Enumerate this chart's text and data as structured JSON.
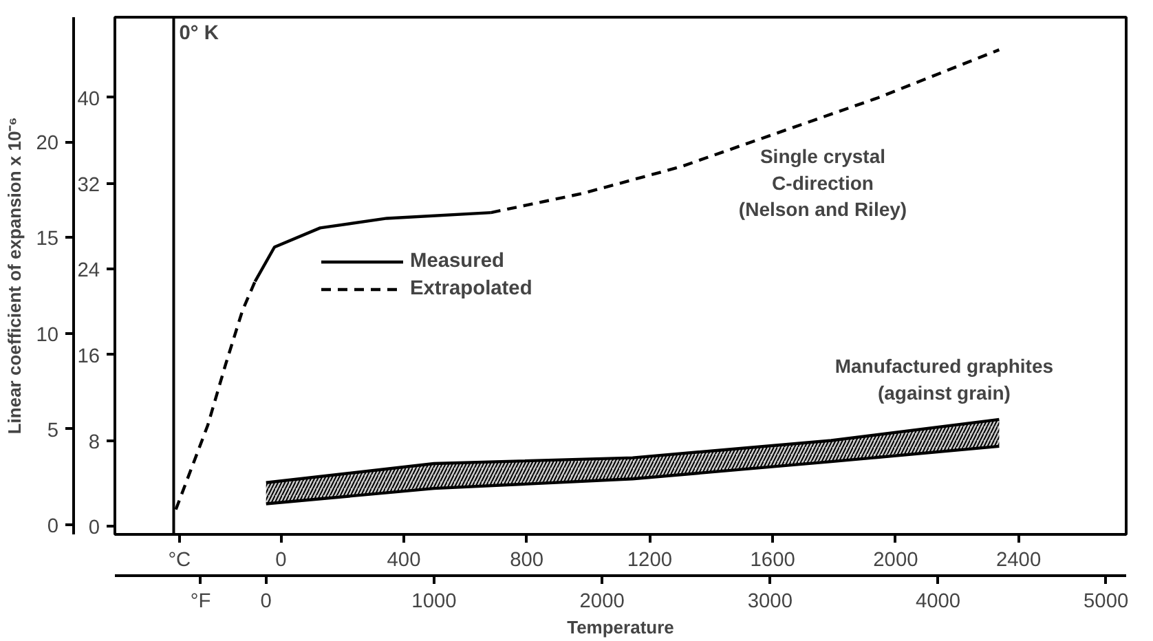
{
  "chart_data": {
    "type": "line",
    "xlabel": "Temperature",
    "ylabel": "Linear coefficient of expansion x 10⁻⁶",
    "xlim": [
      -900,
      5120
    ],
    "xticks": [
      {
        "value": -390,
        "label": "°F"
      },
      0,
      1000,
      2000,
      3000,
      4000,
      5000
    ],
    "x2lim": [
      -540,
      2750
    ],
    "x2ticks": [
      {
        "value": -330,
        "label": "°C"
      },
      0,
      400,
      800,
      1200,
      1600,
      2000,
      2400
    ],
    "ylim": [
      -0.5,
      26.5
    ],
    "yticks": [
      0,
      5,
      10,
      15,
      20
    ],
    "y2lim": [
      -0.75,
      47.5
    ],
    "y2ticks": [
      0,
      8,
      16,
      24,
      32,
      40
    ],
    "grid": false,
    "legend": "center left",
    "series": [
      {
        "name": "Measured",
        "color": "#000000",
        "line_style": "solid",
        "x": [
          -66,
          50,
          322,
          719,
          1339
        ],
        "values": [
          12.7,
          14.5,
          15.5,
          16.0,
          16.3
        ]
      },
      {
        "name": "Extrapolated",
        "color": "#000000",
        "line_style": "dashed",
        "x": [
          -537,
          -347,
          -240,
          -140,
          -66,
          null,
          1339,
          1884,
          2471,
          3058,
          3645,
          4364
        ],
        "values": [
          0.8,
          5.2,
          8.4,
          11.2,
          12.7,
          null,
          16.3,
          17.3,
          18.7,
          20.5,
          22.3,
          24.8
        ]
      },
      {
        "color": "#000000",
        "x": [
          0,
          1000,
          2182,
          3364,
          4364
        ],
        "values": [
          2.2,
          3.2,
          3.5,
          4.4,
          5.5
        ]
      },
      {
        "color": "#000000",
        "x": [
          0,
          1000,
          2182,
          3364,
          4364
        ],
        "values": [
          1.1,
          1.9,
          2.4,
          3.3,
          4.1
        ]
      },
      {
        "color": "#000000",
        "x": [
          0,
          1000,
          2182,
          3364,
          4364
        ],
        "values": [
          null,
          null,
          null,
          null,
          null
        ],
        "lower": [
          1.1,
          1.9,
          2.4,
          3.3,
          4.1
        ],
        "upper": [
          2.2,
          3.2,
          3.5,
          4.4,
          5.5
        ]
      }
    ],
    "ref_lines": [
      {
        "axis": "x",
        "value": -550,
        "label": "0° K"
      }
    ],
    "annotations": [
      "Single crystal\nC-direction\n(Nelson and Riley)",
      "Manufactured graphites\n(against grain)"
    ]
  }
}
